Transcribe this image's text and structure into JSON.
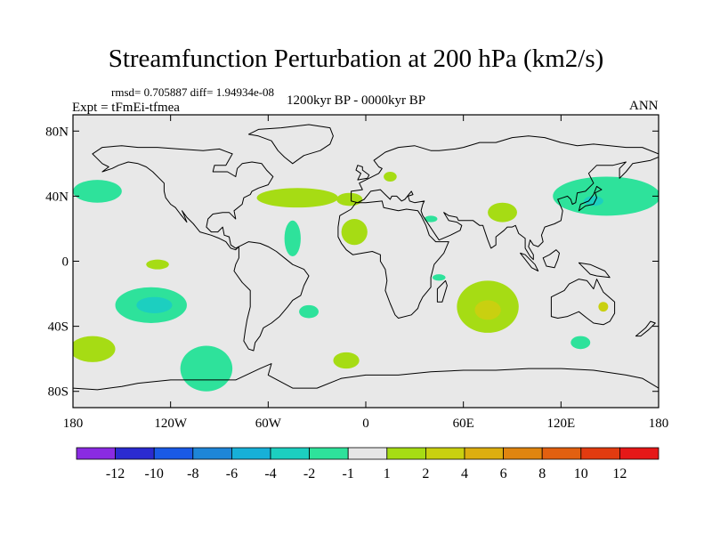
{
  "chart_data": {
    "type": "filled-contour-map",
    "title": "Streamfunction Perturbation at 200 hPa (km2/s)",
    "stats": "rmsd= 0.705887 diff= 1.94934e-08",
    "experiment": "Expt = tFmEi-tfmea",
    "period": "1200kyr BP - 0000kyr BP",
    "season": "ANN",
    "xlim": [
      -180,
      180
    ],
    "ylim": [
      -90,
      90
    ],
    "x_ticks": [
      {
        "value": -180,
        "label": "180"
      },
      {
        "value": -120,
        "label": "120W"
      },
      {
        "value": -60,
        "label": "60W"
      },
      {
        "value": 0,
        "label": "0"
      },
      {
        "value": 60,
        "label": "60E"
      },
      {
        "value": 120,
        "label": "120E"
      },
      {
        "value": 180,
        "label": "180"
      }
    ],
    "y_ticks": [
      {
        "value": 80,
        "label": "80N"
      },
      {
        "value": 40,
        "label": "40N"
      },
      {
        "value": 0,
        "label": "0"
      },
      {
        "value": -40,
        "label": "40S"
      },
      {
        "value": -80,
        "label": "80S"
      }
    ],
    "colorbar": {
      "levels": [
        "-12",
        "-10",
        "-8",
        "-6",
        "-4",
        "-2",
        "-1",
        "1",
        "2",
        "4",
        "6",
        "8",
        "10",
        "12"
      ],
      "colors": [
        "#8A2BE2",
        "#2B2BD0",
        "#1A5AE6",
        "#1E86D8",
        "#17B0D8",
        "#1CCFC0",
        "#2EE29B",
        "#E6E6E6",
        "#A6DC14",
        "#C9D010",
        "#DCAE10",
        "#E08510",
        "#E26010",
        "#E23B10",
        "#E61818"
      ]
    },
    "anomalies": [
      {
        "name": "n-atlantic",
        "lon": -42,
        "lat": 39,
        "rlon": 25,
        "rlat": 6,
        "value": 1.5
      },
      {
        "name": "n-atlantic-east",
        "lon": -10,
        "lat": 38,
        "rlon": 8,
        "rlat": 4,
        "value": 1.5
      },
      {
        "name": "n-pacific-east",
        "lon": -165,
        "lat": 43,
        "rlon": 15,
        "rlat": 7,
        "value": -1.5
      },
      {
        "name": "nw-pacific",
        "lon": 148,
        "lat": 40,
        "rlon": 33,
        "rlat": 12,
        "value": -1.5
      },
      {
        "name": "japan-core",
        "lon": 140,
        "lat": 37,
        "rlon": 6,
        "rlat": 3,
        "value": -3
      },
      {
        "name": "europe",
        "lon": 15,
        "lat": 52,
        "rlon": 4,
        "rlat": 3,
        "value": 1.5
      },
      {
        "name": "mediterranean-east",
        "lon": 40,
        "lat": 26,
        "rlon": 4,
        "rlat": 2,
        "value": -1.5
      },
      {
        "name": "central-asia",
        "lon": 84,
        "lat": 30,
        "rlon": 9,
        "rlat": 6,
        "value": 1.5
      },
      {
        "name": "sahel",
        "lon": -7,
        "lat": 18,
        "rlon": 8,
        "rlat": 8,
        "value": 1.5
      },
      {
        "name": "tropical-atlantic",
        "lon": -45,
        "lat": 14,
        "rlon": 5,
        "rlat": 11,
        "value": -1.5
      },
      {
        "name": "east-pacific-eq",
        "lon": -128,
        "lat": -2,
        "rlon": 7,
        "rlat": 3,
        "value": 1.5
      },
      {
        "name": "s-pacific-mid",
        "lon": -132,
        "lat": -27,
        "rlon": 22,
        "rlat": 11,
        "value": -1.5
      },
      {
        "name": "s-pacific-core",
        "lon": -130,
        "lat": -27,
        "rlon": 11,
        "rlat": 5,
        "value": -3
      },
      {
        "name": "south-atlantic",
        "lon": -35,
        "lat": -31,
        "rlon": 6,
        "rlat": 4,
        "value": -1.5
      },
      {
        "name": "s-pacific-west",
        "lon": -168,
        "lat": -54,
        "rlon": 14,
        "rlat": 8,
        "value": 1.5
      },
      {
        "name": "s-pacific-high-lat",
        "lon": -98,
        "lat": -66,
        "rlon": 16,
        "rlat": 14,
        "value": -1.5
      },
      {
        "name": "s-atlantic-high-lat",
        "lon": -12,
        "lat": -61,
        "rlon": 8,
        "rlat": 5,
        "value": 1.5
      },
      {
        "name": "madagascar",
        "lon": 45,
        "lat": -10,
        "rlon": 4,
        "rlat": 2,
        "value": -1.5
      },
      {
        "name": "indian-ocean",
        "lon": 75,
        "lat": -28,
        "rlon": 19,
        "rlat": 16,
        "value": 1.5
      },
      {
        "name": "indian-ocean-core",
        "lon": 75,
        "lat": -30,
        "rlon": 8,
        "rlat": 6,
        "value": 3
      },
      {
        "name": "australia-east",
        "lon": 146,
        "lat": -28,
        "rlon": 3,
        "rlat": 3,
        "value": 3
      },
      {
        "name": "tasman",
        "lon": 132,
        "lat": -50,
        "rlon": 6,
        "rlat": 4,
        "value": -1.5
      }
    ]
  }
}
